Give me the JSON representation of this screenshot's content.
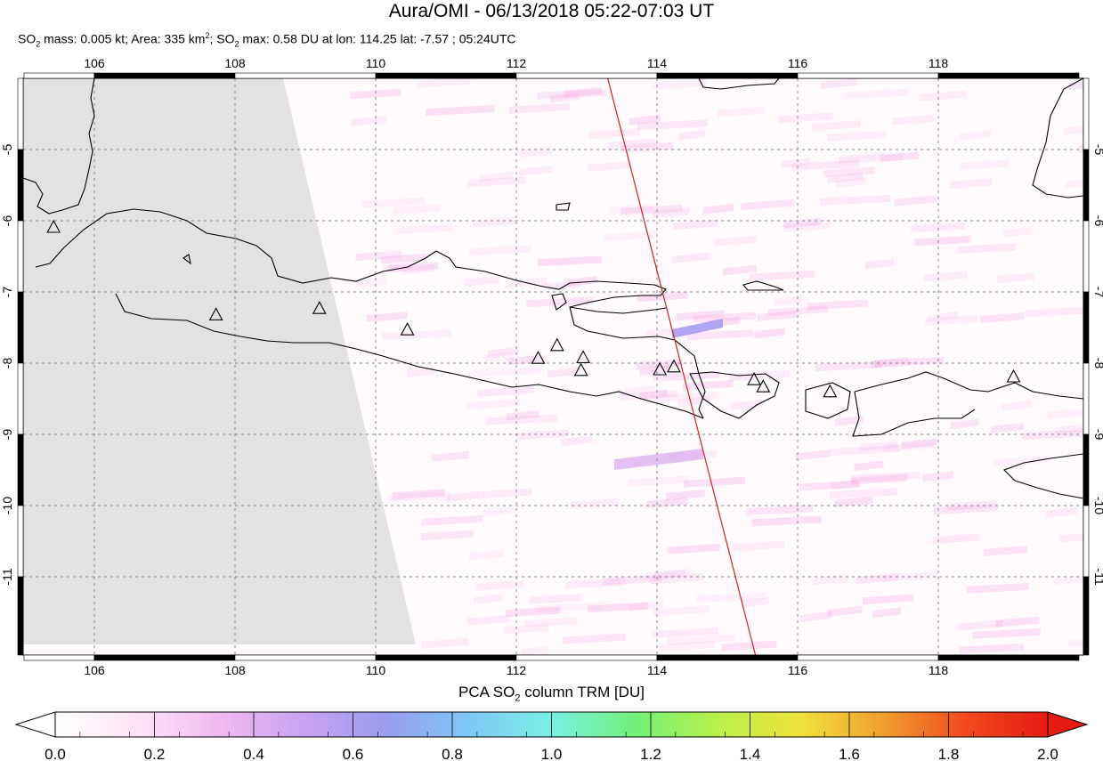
{
  "title": "Aura/OMI - 06/13/2018 05:22-07:03 UT",
  "subtitle": {
    "mass_label": "SO",
    "mass_sub": "2",
    "mass_text": " mass: 0.005 kt; Area: 335 km",
    "area_sup": "2",
    "max_prefix": "; SO",
    "max_sub": "2",
    "max_text": " max: 0.58 DU at lon: 114.25 lat: -7.57 ; 05:24UTC"
  },
  "colorbar": {
    "title_main": "PCA SO",
    "title_sub": "2",
    "title_rest": " column TRM [DU]",
    "ticks": [
      "0.0",
      "0.2",
      "0.4",
      "0.6",
      "0.8",
      "1.0",
      "1.2",
      "1.4",
      "1.6",
      "1.8",
      "2.0"
    ],
    "colors": [
      "#ffffff",
      "#ffe4f6",
      "#f2b8f2",
      "#c9a3f0",
      "#9a9cf0",
      "#7ec8f5",
      "#7af0e6",
      "#72f07a",
      "#b8f04a",
      "#f0e23c",
      "#f0a030",
      "#f04a1e",
      "#e61a10"
    ]
  },
  "chart_data": {
    "type": "map",
    "xlim": [
      105,
      120
    ],
    "ylim": [
      -12.2,
      -4
    ],
    "x_ticks": [
      "106",
      "108",
      "110",
      "112",
      "114",
      "116",
      "118"
    ],
    "y_ticks": [
      "-5",
      "-6",
      "-7",
      "-8",
      "-9",
      "-10",
      "-11"
    ],
    "grid": true,
    "max_value_du": 0.58,
    "max_location": {
      "lon": 114.25,
      "lat": -7.57
    },
    "orbit_track": [
      [
        113.3,
        -4.0
      ],
      [
        115.4,
        -12.1
      ]
    ],
    "volcanoes": [
      [
        105.42,
        -6.1
      ],
      [
        107.73,
        -7.33
      ],
      [
        109.2,
        -7.24
      ],
      [
        110.45,
        -7.54
      ],
      [
        112.31,
        -7.94
      ],
      [
        112.58,
        -7.76
      ],
      [
        112.95,
        -7.93
      ],
      [
        112.92,
        -8.11
      ],
      [
        114.04,
        -8.1
      ],
      [
        114.24,
        -8.06
      ],
      [
        115.38,
        -8.24
      ],
      [
        115.51,
        -8.34
      ],
      [
        116.46,
        -8.41
      ],
      [
        119.07,
        -8.2
      ]
    ]
  }
}
